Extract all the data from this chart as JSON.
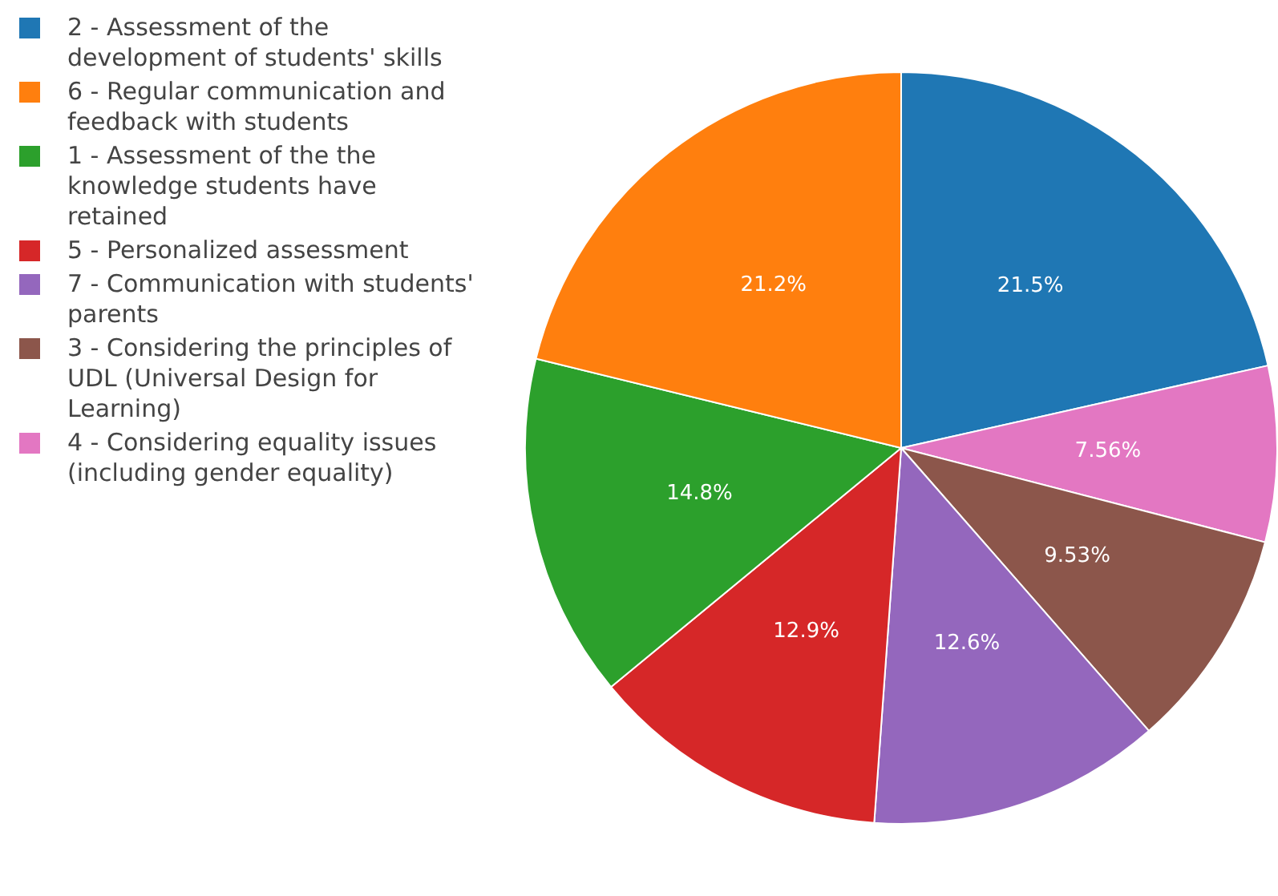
{
  "chart_data": {
    "type": "pie",
    "categories": [
      "2 - Assessment of the development of students' skills",
      "6 - Regular communication and feedback with students",
      "1 - Assessment of the the knowledge students have retained",
      "5 - Personalized assessment",
      "7 - Communication with students' parents",
      "3 - Considering the principles of UDL (Universal Design for Learning)",
      "4 - Considering equality issues (including gender equality)"
    ],
    "values": [
      21.5,
      21.2,
      14.8,
      12.9,
      12.6,
      9.53,
      7.56
    ],
    "colors": [
      "#1f77b4",
      "#ff7f0e",
      "#2ca02c",
      "#d62728",
      "#9467bd",
      "#8c564b",
      "#e377c2"
    ],
    "value_labels": [
      "21.5%",
      "21.2%",
      "14.8%",
      "12.9%",
      "12.6%",
      "9.53%",
      "7.56%"
    ],
    "legend": "top left"
  }
}
